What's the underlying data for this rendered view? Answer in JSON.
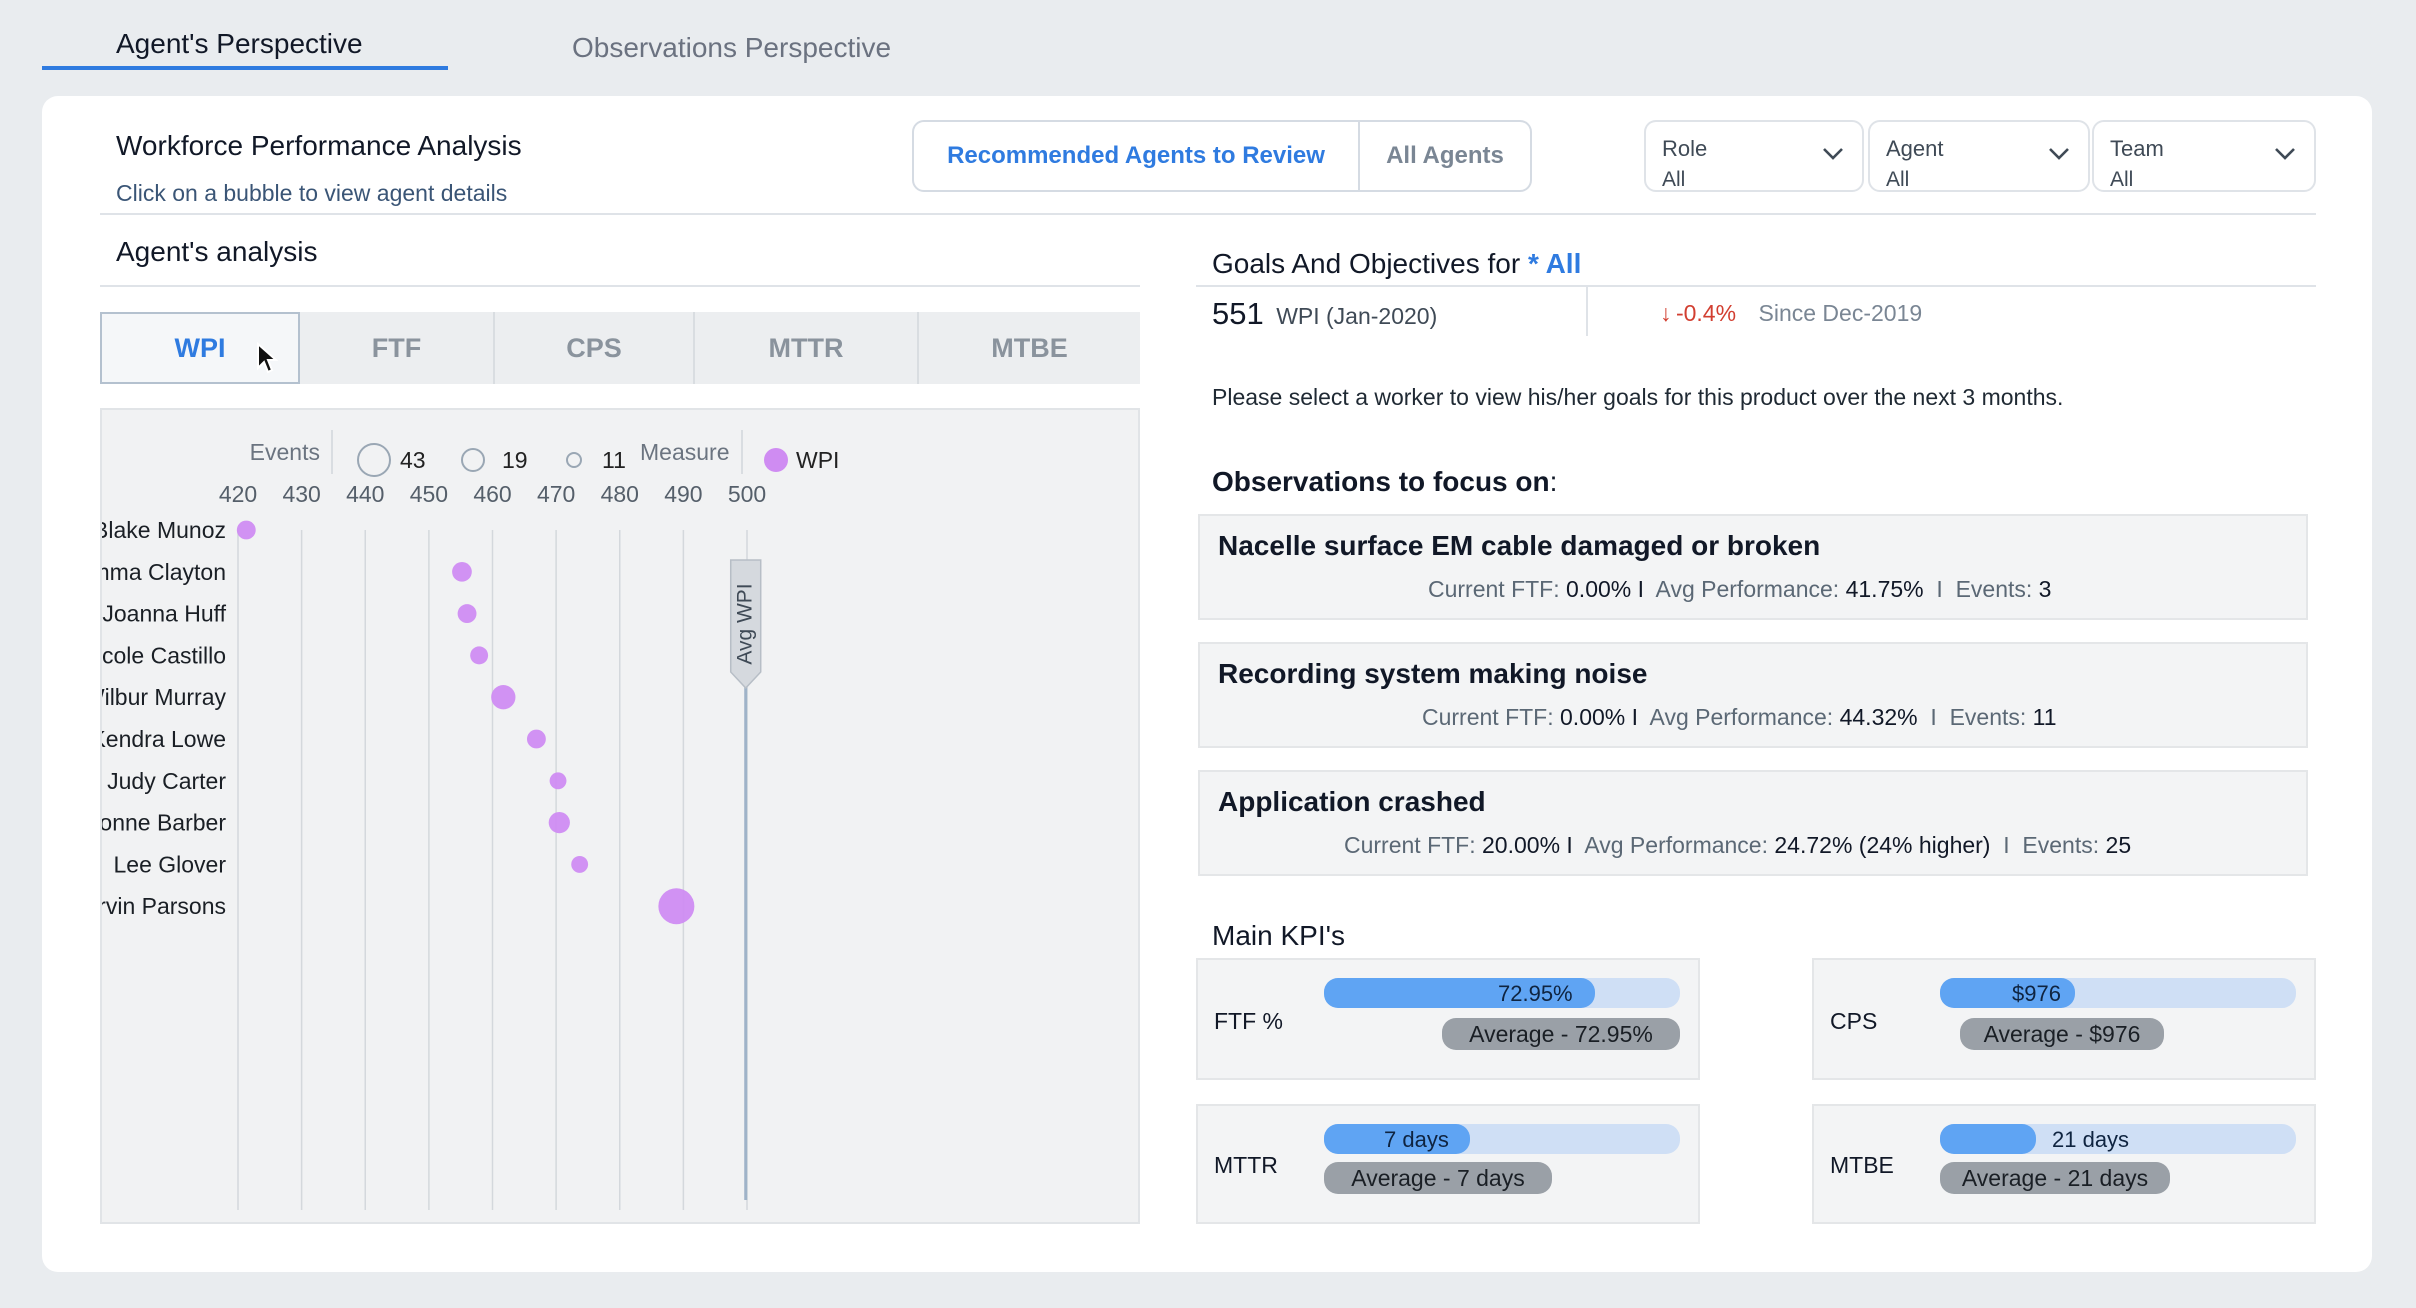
{
  "tabs": [
    {
      "label": "Agent's Perspective",
      "active": true
    },
    {
      "label": "Observations Perspective",
      "active": false
    }
  ],
  "header": {
    "title": "Workforce Performance Analysis",
    "subtitle": "Click on a bubble to view agent details"
  },
  "review_toggle": {
    "recommended_label": "Recommended Agents to Review",
    "all_label": "All Agents",
    "selected": "Recommended Agents to Review"
  },
  "filters": [
    {
      "label": "Role",
      "value": "All"
    },
    {
      "label": "Agent",
      "value": "All"
    },
    {
      "label": "Team",
      "value": "All"
    }
  ],
  "analysis": {
    "title": "Agent's analysis",
    "metric_tabs": [
      "WPI",
      "FTF",
      "CPS",
      "MTTR",
      "MTBE"
    ],
    "active_metric": "WPI"
  },
  "chart_data": {
    "type": "scatter",
    "legend": {
      "events_label": "Events",
      "sizes": [
        43,
        19,
        11
      ],
      "measure_label": "Measure",
      "measure_series": "WPI"
    },
    "x_ticks": [
      420,
      430,
      440,
      450,
      460,
      470,
      480,
      490,
      500
    ],
    "xlim": [
      420,
      502
    ],
    "categories": [
      "Blake Munoz",
      "Emma Clayton",
      "Joanna Huff",
      "Nicole Castillo",
      "Wilbur Murray",
      "Kendra Lowe",
      "Judy Carter",
      "Yvonne Barber",
      "Lee Glover",
      "Marvin Parsons"
    ],
    "values": [
      421.3,
      455.2,
      456,
      457.9,
      461.7,
      466.9,
      470.3,
      470.5,
      473.7,
      488.9
    ],
    "events": [
      5,
      6,
      5,
      4,
      13,
      5,
      3,
      8,
      3,
      43
    ],
    "reference_line": {
      "label": "Avg WPI",
      "value": 499.8
    },
    "series_color": "#cf8cf2"
  },
  "goals": {
    "title_prefix": "Goals And Objectives for",
    "title_scope": "* All",
    "wpi_value": "551",
    "wpi_label": "WPI (Jan-2020)",
    "delta_arrow": "↓",
    "delta": "-0.4%",
    "since": "Since Dec-2019",
    "instruction": "Please select a worker to view his/her goals for this product over the next 3 months."
  },
  "observations": {
    "heading": "Observations to focus on",
    "colon": ":",
    "items": [
      {
        "title": "Nacelle surface EM cable damaged or broken",
        "ftf_label": "Current FTF:",
        "ftf": "0.00%",
        "sep1": "I",
        "avg_label": "Avg Performance:",
        "avg": "41.75%",
        "sep2": "I",
        "events_label": "Events:",
        "events": "3"
      },
      {
        "title": "Recording system making noise",
        "ftf_label": "Current FTF:",
        "ftf": "0.00%",
        "sep1": "I",
        "avg_label": "Avg Performance:",
        "avg": "44.32%",
        "sep2": "I",
        "events_label": "Events:",
        "events": "11"
      },
      {
        "title": "Application crashed",
        "ftf_label": "Current FTF:",
        "ftf": "20.00%",
        "sep1": "I",
        "avg_label": "Avg Performance:",
        "avg": "24.72% (24% higher)",
        "sep2": "I",
        "events_label": "Events:",
        "events": "25"
      }
    ]
  },
  "kpis": {
    "title": "Main KPI's",
    "items": [
      {
        "label": "FTF %",
        "value": "72.95%",
        "fill": 0.76,
        "average": "Average  - 72.95%"
      },
      {
        "label": "CPS",
        "value": "$976",
        "fill": 0.38,
        "average": "Average - $976"
      },
      {
        "label": "MTTR",
        "value": "7 days",
        "fill": 0.41,
        "average": "Average - 7 days"
      },
      {
        "label": "MTBE",
        "value": "21 days",
        "fill": 0.27,
        "average": "Average - 21 days"
      }
    ]
  },
  "colors": {
    "accent": "#2f7be0",
    "bubble": "#cf8cf2",
    "negative": "#d23f31",
    "bar_fill": "#5fa4f3",
    "bar_track": "#cfdff5"
  }
}
